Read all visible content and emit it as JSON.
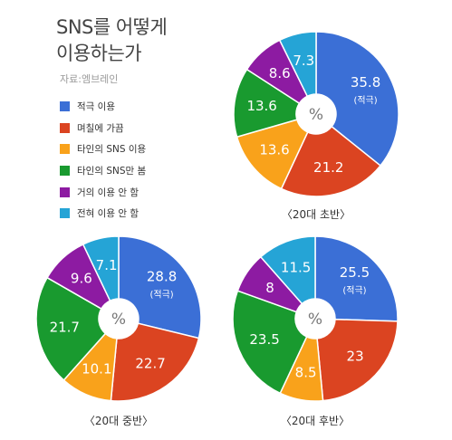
{
  "header": {
    "title_line1": "SNS를 어떻게",
    "title_line2": "이용하는가",
    "source": "자료:엠브레인"
  },
  "colors": [
    "#3b6fd6",
    "#db4421",
    "#f9a21b",
    "#199a2f",
    "#8d1ba2",
    "#25a4d6"
  ],
  "legend": [
    {
      "label": "적극 이용",
      "color": "#3b6fd6"
    },
    {
      "label": "며칠에 가끔",
      "color": "#db4421"
    },
    {
      "label": "타인의 SNS 이용",
      "color": "#f9a21b"
    },
    {
      "label": "타인의 SNS만 봄",
      "color": "#199a2f"
    },
    {
      "label": "거의 이용 안 함",
      "color": "#8d1ba2"
    },
    {
      "label": "전혀 이용 안 함",
      "color": "#25a4d6"
    }
  ],
  "chart_data": [
    {
      "type": "pie",
      "title": "〈20대 초반〉",
      "center_label": "%",
      "highlight_note": "(적극)",
      "categories": [
        "적극 이용",
        "며칠에 가끔",
        "타인의 SNS 이용",
        "타인의 SNS만 봄",
        "거의 이용 안 함",
        "전혀 이용 안 함"
      ],
      "values": [
        35.8,
        21.2,
        13.6,
        13.6,
        8.6,
        7.3
      ],
      "labels": [
        "35.8",
        "21.2",
        "13.6",
        "13.6",
        "8.6",
        "7.3"
      ]
    },
    {
      "type": "pie",
      "title": "〈20대 중반〉",
      "center_label": "%",
      "highlight_note": "(적극)",
      "categories": [
        "적극 이용",
        "며칠에 가끔",
        "타인의 SNS 이용",
        "타인의 SNS만 봄",
        "거의 이용 안 함",
        "전혀 이용 안 함"
      ],
      "values": [
        28.8,
        22.7,
        10.1,
        21.7,
        9.6,
        7.1
      ],
      "labels": [
        "28.8",
        "22.7",
        "10.1",
        "21.7",
        "9.6",
        "7.1"
      ]
    },
    {
      "type": "pie",
      "title": "〈20대 후반〉",
      "center_label": "%",
      "highlight_note": "(적극)",
      "categories": [
        "적극 이용",
        "며칠에 가끔",
        "타인의 SNS 이용",
        "타인의 SNS만 봄",
        "거의 이용 안 함",
        "전혀 이용 안 함"
      ],
      "values": [
        25.5,
        23,
        8.5,
        23.5,
        8,
        11.5
      ],
      "labels": [
        "25.5",
        "23",
        "8.5",
        "23.5",
        "8",
        "11.5"
      ]
    }
  ]
}
